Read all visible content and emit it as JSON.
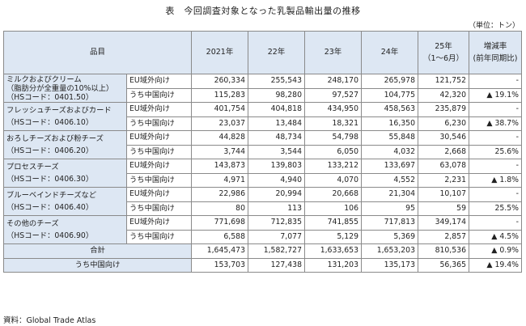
{
  "title": "表　今回調査対象となった乳製品輸出量の推移",
  "unit": "（単位：トン）",
  "headers": {
    "item": "品目",
    "y2021": "2021年",
    "y22": "22年",
    "y23": "23年",
    "y24": "24年",
    "y25_line1": "25年",
    "y25_line2": "（1〜6月）",
    "change_line1": "増減率",
    "change_line2": "(前年同期比)"
  },
  "rows": [
    {
      "item": [
        "ミルクおよびクリーム",
        "（脂肪分が全重量の10%以上）",
        "（HSコード：0401.50）"
      ],
      "eu": {
        "label": "EU域外向け",
        "v2021": "260,334",
        "v22": "255,543",
        "v23": "248,170",
        "v24": "265,978",
        "v25": "121,752",
        "chg": "-"
      },
      "cn": {
        "label": "うち中国向け",
        "v2021": "115,283",
        "v22": "98,280",
        "v23": "97,527",
        "v24": "104,775",
        "v25": "42,320",
        "chg": "▲ 19.1%"
      }
    },
    {
      "item": [
        "フレッシュチーズおよびカード",
        "（HSコード：0406.10）"
      ],
      "eu": {
        "label": "EU域外向け",
        "v2021": "401,754",
        "v22": "404,818",
        "v23": "434,950",
        "v24": "458,563",
        "v25": "235,879",
        "chg": "-"
      },
      "cn": {
        "label": "うち中国向け",
        "v2021": "23,037",
        "v22": "13,484",
        "v23": "18,321",
        "v24": "16,350",
        "v25": "6,230",
        "chg": "▲ 38.7%"
      }
    },
    {
      "item": [
        "おろしチーズおよび粉チーズ",
        "（HSコード：0406.20）"
      ],
      "eu": {
        "label": "EU域外向け",
        "v2021": "44,828",
        "v22": "48,734",
        "v23": "54,798",
        "v24": "55,848",
        "v25": "30,546",
        "chg": "-"
      },
      "cn": {
        "label": "うち中国向け",
        "v2021": "3,744",
        "v22": "3,544",
        "v23": "6,050",
        "v24": "4,032",
        "v25": "2,668",
        "chg": "25.6%"
      }
    },
    {
      "item": [
        "プロセスチーズ",
        "（HSコード：0406.30）"
      ],
      "eu": {
        "label": "EU域外向け",
        "v2021": "143,873",
        "v22": "139,803",
        "v23": "133,212",
        "v24": "133,697",
        "v25": "63,078",
        "chg": "-"
      },
      "cn": {
        "label": "うち中国向け",
        "v2021": "4,971",
        "v22": "4,940",
        "v23": "4,070",
        "v24": "4,552",
        "v25": "2,231",
        "chg": "▲ 1.8%"
      }
    },
    {
      "item": [
        "ブルーベインドチーズなど",
        "（HSコード：0406.40）"
      ],
      "eu": {
        "label": "EU域外向け",
        "v2021": "22,986",
        "v22": "20,994",
        "v23": "20,668",
        "v24": "21,304",
        "v25": "10,107",
        "chg": "-"
      },
      "cn": {
        "label": "うち中国向け",
        "v2021": "80",
        "v22": "113",
        "v23": "106",
        "v24": "95",
        "v25": "59",
        "chg": "25.5%"
      }
    },
    {
      "item": [
        "その他のチーズ",
        "（HSコード：0406.90）"
      ],
      "eu": {
        "label": "EU域外向け",
        "v2021": "771,698",
        "v22": "712,835",
        "v23": "741,855",
        "v24": "717,813",
        "v25": "349,174",
        "chg": "-"
      },
      "cn": {
        "label": "うち中国向け",
        "v2021": "6,588",
        "v22": "7,077",
        "v23": "5,129",
        "v24": "5,369",
        "v25": "2,857",
        "chg": "▲ 4.5%"
      }
    }
  ],
  "total": {
    "label": "合計",
    "v2021": "1,645,473",
    "v22": "1,582,727",
    "v23": "1,633,653",
    "v24": "1,653,203",
    "v25": "810,536",
    "chg": "▲ 0.9%"
  },
  "total_cn": {
    "label": "うち中国向け",
    "v2021": "153,703",
    "v22": "127,438",
    "v23": "131,203",
    "v24": "135,173",
    "v25": "56,365",
    "chg": "▲ 19.4%"
  },
  "source": "資料：Global Trade Atlas"
}
